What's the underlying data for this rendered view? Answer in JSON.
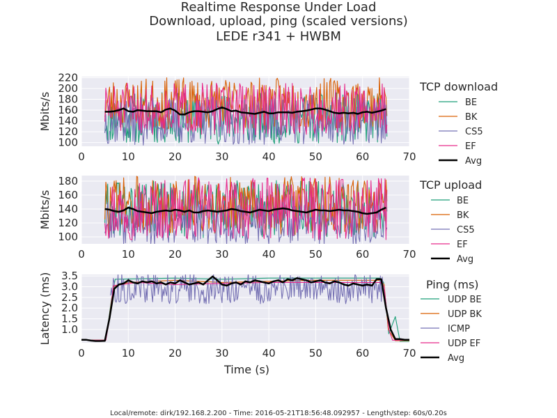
{
  "title": {
    "line1": "Realtime Response Under Load",
    "line2": "Download, upload, ping (scaled versions)",
    "line3": "LEDE r341 + HWBM"
  },
  "footer": "Local/remote: dirk/192.168.2.200 - Time: 2016-05-21T18:56:48.092957 - Length/step: 60s/0.20s",
  "colors": {
    "plot_bg": "#eaeaf2",
    "grid": "#ffffff",
    "BE": "#1b9e77",
    "BK": "#d95f02",
    "CS5": "#7570b3",
    "EF": "#e7298a",
    "Avg": "#000000"
  },
  "chart_data": [
    {
      "type": "line",
      "title": "TCP download",
      "xlabel": "",
      "ylabel": "Mbits/s",
      "xlim": [
        0,
        70
      ],
      "ylim": [
        93,
        222
      ],
      "xticks": [
        0,
        10,
        20,
        30,
        40,
        50,
        60,
        70
      ],
      "yticks": [
        100,
        120,
        140,
        160,
        180,
        200,
        220
      ],
      "x_start": 5,
      "x_end": 65.2,
      "step": 0.2,
      "legend_title": "TCP download",
      "series": [
        {
          "name": "BE",
          "mean": 145,
          "amplitude": 48,
          "seed": 11
        },
        {
          "name": "BK",
          "mean": 172,
          "amplitude": 48,
          "seed": 23
        },
        {
          "name": "CS5",
          "mean": 140,
          "amplitude": 45,
          "seed": 37
        },
        {
          "name": "EF",
          "mean": 162,
          "amplitude": 48,
          "seed": 51
        },
        {
          "name": "Avg",
          "values": [
            157,
            157,
            158,
            160,
            163,
            158,
            157,
            160,
            159,
            158,
            158,
            158,
            156,
            161,
            163,
            159,
            152,
            152,
            156,
            158,
            158,
            157,
            156,
            158,
            162,
            165,
            162,
            158,
            159,
            156,
            155,
            154,
            153,
            155,
            157,
            154,
            154,
            156,
            156,
            156,
            155,
            157,
            158,
            159,
            161,
            163,
            163,
            161,
            158,
            155,
            154,
            155,
            154,
            155,
            153,
            156,
            157,
            155,
            157,
            159,
            162
          ]
        }
      ]
    },
    {
      "type": "line",
      "title": "TCP upload",
      "xlabel": "",
      "ylabel": "Mbits/s",
      "xlim": [
        0,
        70
      ],
      "ylim": [
        90,
        188
      ],
      "xticks": [
        0,
        10,
        20,
        30,
        40,
        50,
        60,
        70
      ],
      "yticks": [
        100,
        120,
        140,
        160,
        180
      ],
      "x_start": 5,
      "x_end": 65.2,
      "step": 0.2,
      "legend_title": "TCP upload",
      "series": [
        {
          "name": "BE",
          "mean": 140,
          "amplitude": 42,
          "seed": 61
        },
        {
          "name": "BK",
          "mean": 145,
          "amplitude": 42,
          "seed": 73
        },
        {
          "name": "CS5",
          "mean": 120,
          "amplitude": 32,
          "seed": 89
        },
        {
          "name": "EF",
          "mean": 140,
          "amplitude": 45,
          "seed": 97
        },
        {
          "name": "Avg",
          "values": [
            140,
            139,
            137,
            136,
            138,
            142,
            140,
            137,
            136,
            135,
            134,
            136,
            137,
            138,
            137,
            139,
            138,
            136,
            138,
            135,
            135,
            137,
            138,
            137,
            136,
            137,
            138,
            140,
            139,
            137,
            136,
            135,
            137,
            139,
            138,
            137,
            139,
            140,
            141,
            140,
            138,
            137,
            136,
            135,
            137,
            139,
            138,
            138,
            137,
            138,
            139,
            138,
            138,
            137,
            136,
            134,
            133,
            134,
            135,
            139,
            142
          ]
        }
      ]
    },
    {
      "type": "line",
      "title": "Ping (ms)",
      "xlabel": "Time (s)",
      "ylabel": "Latency (ms)",
      "xlim": [
        0,
        70
      ],
      "ylim": [
        0.38,
        3.57
      ],
      "xticks": [
        0,
        10,
        20,
        30,
        40,
        50,
        60,
        70
      ],
      "yticks": [
        1.0,
        1.5,
        2.0,
        2.5,
        3.0,
        3.5
      ],
      "legend_title": "Ping (ms)",
      "series": [
        {
          "name": "UDP BE",
          "points": [
            [
              0,
              0.5
            ],
            [
              5.2,
              0.5
            ],
            [
              6.4,
              2.4
            ],
            [
              7.2,
              3.35
            ],
            [
              20,
              3.4
            ],
            [
              30,
              3.35
            ],
            [
              40,
              3.4
            ],
            [
              50,
              3.4
            ],
            [
              63.8,
              3.4
            ],
            [
              64.5,
              3.2
            ],
            [
              65.6,
              0.8
            ],
            [
              67,
              1.6
            ],
            [
              68,
              0.45
            ],
            [
              70,
              0.45
            ]
          ]
        },
        {
          "name": "UDP BK",
          "points": [
            [
              0,
              0.5
            ],
            [
              5.2,
              0.5
            ],
            [
              6.2,
              2.0
            ],
            [
              6.8,
              3.0
            ],
            [
              10,
              3.2
            ],
            [
              20,
              3.3
            ],
            [
              30,
              3.2
            ],
            [
              40,
              3.25
            ],
            [
              50,
              3.3
            ],
            [
              63.8,
              3.3
            ],
            [
              64.6,
              3.1
            ],
            [
              65.5,
              1.0
            ],
            [
              67,
              0.48
            ],
            [
              70,
              0.48
            ]
          ]
        },
        {
          "name": "ICMP",
          "seed": 113,
          "mean": 2.9,
          "amplitude": 0.7,
          "x_start": 6.2,
          "x_end": 64.4,
          "step": 0.2
        },
        {
          "name": "UDP EF",
          "points": [
            [
              0,
              0.5
            ],
            [
              5.2,
              0.5
            ],
            [
              6.0,
              1.5
            ],
            [
              6.8,
              3.05
            ],
            [
              12,
              3.2
            ],
            [
              20,
              3.1
            ],
            [
              30,
              3.15
            ],
            [
              40,
              3.2
            ],
            [
              50,
              3.2
            ],
            [
              63.8,
              3.2
            ],
            [
              64.6,
              3.0
            ],
            [
              65.6,
              1.0
            ],
            [
              66.4,
              0.5
            ],
            [
              70,
              0.5
            ]
          ]
        },
        {
          "name": "Avg",
          "points": [
            [
              0,
              0.52
            ],
            [
              1,
              0.52
            ],
            [
              2,
              0.48
            ],
            [
              3,
              0.46
            ],
            [
              4,
              0.46
            ],
            [
              5,
              0.47
            ],
            [
              6,
              1.55
            ],
            [
              7,
              2.9
            ],
            [
              8,
              3.1
            ],
            [
              9,
              3.15
            ],
            [
              10,
              3.3
            ],
            [
              11,
              3.2
            ],
            [
              12,
              3.15
            ],
            [
              13,
              3.25
            ],
            [
              14,
              3.2
            ],
            [
              15,
              3.25
            ],
            [
              16,
              3.15
            ],
            [
              17,
              3.2
            ],
            [
              18,
              3.1
            ],
            [
              19,
              3.2
            ],
            [
              20,
              3.15
            ],
            [
              21,
              3.3
            ],
            [
              22,
              3.2
            ],
            [
              23,
              3.1
            ],
            [
              24,
              3.15
            ],
            [
              25,
              3.2
            ],
            [
              26,
              3.1
            ],
            [
              27,
              3.3
            ],
            [
              28,
              3.48
            ],
            [
              29,
              3.3
            ],
            [
              30,
              3.1
            ],
            [
              31,
              3.05
            ],
            [
              32,
              3.15
            ],
            [
              33,
              3.2
            ],
            [
              34,
              3.1
            ],
            [
              35,
              3.25
            ],
            [
              36,
              3.2
            ],
            [
              37,
              3.3
            ],
            [
              38,
              3.25
            ],
            [
              39,
              3.2
            ],
            [
              40,
              3.15
            ],
            [
              41,
              3.25
            ],
            [
              42,
              3.3
            ],
            [
              43,
              3.2
            ],
            [
              44,
              3.35
            ],
            [
              45,
              3.3
            ],
            [
              46,
              3.4
            ],
            [
              47,
              3.35
            ],
            [
              48,
              3.3
            ],
            [
              49,
              3.2
            ],
            [
              50,
              3.25
            ],
            [
              51,
              3.3
            ],
            [
              52,
              3.2
            ],
            [
              53,
              3.15
            ],
            [
              54,
              3.25
            ],
            [
              55,
              3.2
            ],
            [
              56,
              3.1
            ],
            [
              57,
              3.05
            ],
            [
              58,
              3.15
            ],
            [
              59,
              3.1
            ],
            [
              60,
              3.05
            ],
            [
              61,
              3.1
            ],
            [
              62,
              3.05
            ],
            [
              63,
              3.35
            ],
            [
              64,
              3.35
            ],
            [
              65,
              2.0
            ],
            [
              66,
              1.0
            ],
            [
              67,
              0.55
            ],
            [
              68,
              0.55
            ],
            [
              69,
              0.52
            ],
            [
              70,
              0.52
            ]
          ]
        }
      ]
    }
  ]
}
